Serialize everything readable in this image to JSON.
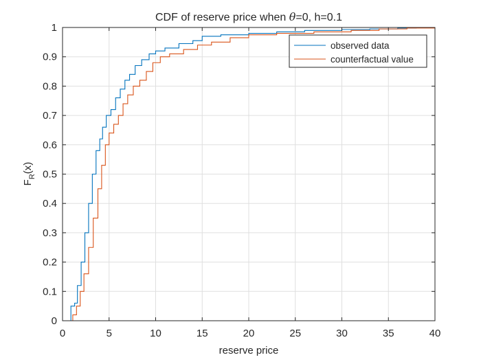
{
  "chart_data": {
    "type": "line",
    "title_prefix": "CDF of reserve price when ",
    "title_symbol": "θ",
    "title_suffix": "=0, h=0.1",
    "xlabel": "reserve price",
    "ylabel_main": "F",
    "ylabel_sub": "R",
    "ylabel_tail": "(x)",
    "xlim": [
      0,
      40
    ],
    "ylim": [
      0,
      1
    ],
    "xticks": [
      0,
      5,
      10,
      15,
      20,
      25,
      30,
      35,
      40
    ],
    "yticks": [
      0,
      0.1,
      0.2,
      0.3,
      0.4,
      0.5,
      0.6,
      0.7,
      0.8,
      0.9,
      1
    ],
    "xtick_labels": [
      "0",
      "5",
      "10",
      "15",
      "20",
      "25",
      "30",
      "35",
      "40"
    ],
    "ytick_labels": [
      "0",
      "0.1",
      "0.2",
      "0.3",
      "0.4",
      "0.5",
      "0.6",
      "0.7",
      "0.8",
      "0.9",
      "1"
    ],
    "grid": true,
    "legend_position": "top-right",
    "series": [
      {
        "name": "observed data",
        "color": "#0072BD",
        "points": [
          [
            0.8,
            0
          ],
          [
            0.9,
            0.05
          ],
          [
            1.3,
            0.06
          ],
          [
            1.6,
            0.12
          ],
          [
            2.0,
            0.2
          ],
          [
            2.4,
            0.3
          ],
          [
            2.8,
            0.4
          ],
          [
            3.2,
            0.5
          ],
          [
            3.6,
            0.58
          ],
          [
            4.0,
            0.62
          ],
          [
            4.3,
            0.66
          ],
          [
            4.7,
            0.7
          ],
          [
            5.2,
            0.72
          ],
          [
            5.7,
            0.76
          ],
          [
            6.2,
            0.79
          ],
          [
            6.7,
            0.82
          ],
          [
            7.2,
            0.84
          ],
          [
            7.8,
            0.87
          ],
          [
            8.5,
            0.89
          ],
          [
            9.3,
            0.91
          ],
          [
            10.0,
            0.92
          ],
          [
            11.0,
            0.93
          ],
          [
            12.5,
            0.945
          ],
          [
            14.0,
            0.955
          ],
          [
            15.0,
            0.97
          ],
          [
            17.0,
            0.975
          ],
          [
            20.0,
            0.98
          ],
          [
            23.0,
            0.985
          ],
          [
            26.0,
            0.99
          ],
          [
            30.0,
            0.993
          ],
          [
            33.0,
            0.995
          ],
          [
            36.0,
            0.998
          ],
          [
            38.0,
            1.0
          ],
          [
            40.0,
            1.0
          ]
        ]
      },
      {
        "name": "counterfactual value",
        "color": "#D95319",
        "points": [
          [
            0.9,
            0
          ],
          [
            1.1,
            0.02
          ],
          [
            1.5,
            0.05
          ],
          [
            1.9,
            0.1
          ],
          [
            2.3,
            0.16
          ],
          [
            2.8,
            0.25
          ],
          [
            3.3,
            0.35
          ],
          [
            3.8,
            0.45
          ],
          [
            4.2,
            0.53
          ],
          [
            4.6,
            0.6
          ],
          [
            5.0,
            0.64
          ],
          [
            5.5,
            0.67
          ],
          [
            6.0,
            0.7
          ],
          [
            6.5,
            0.74
          ],
          [
            7.0,
            0.77
          ],
          [
            7.6,
            0.8
          ],
          [
            8.3,
            0.82
          ],
          [
            9.0,
            0.85
          ],
          [
            9.7,
            0.88
          ],
          [
            10.5,
            0.9
          ],
          [
            11.5,
            0.91
          ],
          [
            13.0,
            0.925
          ],
          [
            14.5,
            0.94
          ],
          [
            16.0,
            0.95
          ],
          [
            18.0,
            0.965
          ],
          [
            20.0,
            0.975
          ],
          [
            23.0,
            0.98
          ],
          [
            27.0,
            0.985
          ],
          [
            31.0,
            0.99
          ],
          [
            34.0,
            0.995
          ],
          [
            37.0,
            0.998
          ],
          [
            40.0,
            1.0
          ]
        ]
      }
    ]
  }
}
